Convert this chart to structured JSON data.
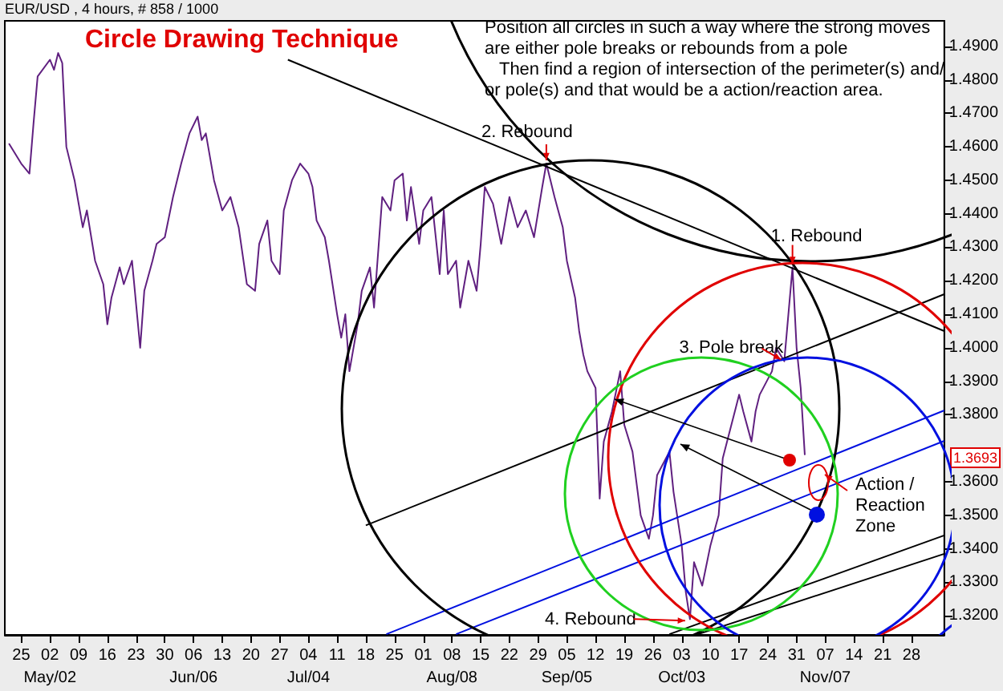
{
  "chart_data": {
    "type": "line",
    "title": "Circle Drawing Technique",
    "subtitle": "EUR/USD , 4 hours, # 858 / 1000",
    "marker": "none",
    "series": [
      {
        "color": "#602080",
        "x": [
          "--04-22",
          "--04-25",
          "--04-27",
          "--04-28",
          "--04-29",
          "--05-02",
          "--05-03",
          "--05-04",
          "--05-05",
          "--05-06",
          "--05-08",
          "--05-10",
          "--05-11",
          "--05-13",
          "--05-15",
          "--05-16",
          "--05-17",
          "--05-19",
          "--05-20",
          "--05-22",
          "--05-24",
          "--05-25",
          "--05-27",
          "--05-28",
          "--05-30",
          "--06-01",
          "--06-03",
          "--06-05",
          "--06-07",
          "--06-08",
          "--06-09",
          "--06-11",
          "--06-13",
          "--06-15",
          "--06-17",
          "--06-19",
          "--06-21",
          "--06-22",
          "--06-24",
          "--06-25",
          "--06-27",
          "--06-28",
          "--06-30",
          "--07-02",
          "--07-04",
          "--07-05",
          "--07-06",
          "--07-08",
          "--07-09",
          "--07-11",
          "--07-12",
          "--07-13",
          "--07-14",
          "--07-16",
          "--07-17",
          "--07-19",
          "--07-20",
          "--07-22",
          "--07-24",
          "--07-25",
          "--07-27",
          "--07-28",
          "--07-29",
          "--07-31",
          "--08-01",
          "--08-03",
          "--08-05",
          "--08-06",
          "--08-07",
          "--08-09",
          "--08-10",
          "--08-12",
          "--08-14",
          "--08-15",
          "--08-16",
          "--08-18",
          "--08-20",
          "--08-22",
          "--08-24",
          "--08-26",
          "--08-28",
          "--08-30",
          "--08-31",
          "--09-02",
          "--09-04",
          "--09-05",
          "--09-07",
          "--09-08",
          "--09-09",
          "--09-10",
          "--09-12",
          "--09-13",
          "--09-14",
          "--09-16",
          "--09-18",
          "--09-19",
          "--09-21",
          "--09-23",
          "--09-25",
          "--09-26",
          "--09-27",
          "--09-30",
          "--10-01",
          "--10-03",
          "--10-04",
          "--10-05",
          "--10-06",
          "--10-08",
          "--10-10",
          "--10-12",
          "--10-13",
          "--10-17",
          "--10-18",
          "--10-20",
          "--10-21",
          "--10-22",
          "--10-25",
          "--10-26",
          "--10-28",
          "--10-30",
          "--10-31",
          "--11-01",
          "--11-02"
        ],
        "values": [
          1.461,
          1.455,
          1.452,
          1.467,
          1.481,
          1.486,
          1.483,
          1.488,
          1.485,
          1.46,
          1.45,
          1.436,
          1.441,
          1.426,
          1.419,
          1.407,
          1.415,
          1.424,
          1.419,
          1.426,
          1.4,
          1.417,
          1.426,
          1.431,
          1.433,
          1.445,
          1.455,
          1.464,
          1.469,
          1.462,
          1.464,
          1.45,
          1.441,
          1.445,
          1.436,
          1.419,
          1.417,
          1.431,
          1.438,
          1.426,
          1.422,
          1.441,
          1.45,
          1.455,
          1.452,
          1.448,
          1.438,
          1.433,
          1.426,
          1.41,
          1.403,
          1.41,
          1.393,
          1.407,
          1.417,
          1.424,
          1.412,
          1.445,
          1.441,
          1.45,
          1.452,
          1.438,
          1.448,
          1.431,
          1.441,
          1.445,
          1.422,
          1.441,
          1.422,
          1.426,
          1.412,
          1.426,
          1.417,
          1.431,
          1.448,
          1.443,
          1.431,
          1.445,
          1.436,
          1.441,
          1.433,
          1.448,
          1.455,
          1.445,
          1.436,
          1.426,
          1.415,
          1.405,
          1.398,
          1.393,
          1.388,
          1.355,
          1.372,
          1.381,
          1.393,
          1.377,
          1.369,
          1.35,
          1.343,
          1.35,
          1.362,
          1.369,
          1.357,
          1.341,
          1.327,
          1.319,
          1.336,
          1.329,
          1.341,
          1.35,
          1.367,
          1.386,
          1.381,
          1.372,
          1.381,
          1.386,
          1.393,
          1.4,
          1.396,
          1.424,
          1.4,
          1.388,
          1.368
        ]
      },
      {
        "type": "line",
        "color": "#000000",
        "x": [
          "--06-29",
          "--12-06"
        ],
        "values": [
          1.486,
          1.405
        ]
      },
      {
        "type": "line",
        "color": "#000000",
        "x": [
          "--07-18",
          "--12-06"
        ],
        "values": [
          1.347,
          1.416
        ]
      },
      {
        "type": "line",
        "color": "#000000",
        "x": [
          "--09-30",
          "--12-06"
        ],
        "values": [
          1.3145,
          1.344
        ]
      },
      {
        "type": "line",
        "color": "#000000",
        "x": [
          "--10-07",
          "--12-06"
        ],
        "values": [
          1.3145,
          1.3385
        ]
      },
      {
        "type": "line",
        "color": "#0010e0",
        "x": [
          "--07-23",
          "--12-06"
        ],
        "values": [
          1.3145,
          1.3813
        ]
      },
      {
        "type": "line",
        "color": "#0010e0",
        "x": [
          "--08-09",
          "--12-06"
        ],
        "values": [
          1.3145,
          1.3722
        ]
      }
    ],
    "xlim": [
      "--04-21",
      "--12-06"
    ],
    "xticks": [
      {
        "value": "--04-25",
        "label": "25"
      },
      {
        "value": "--05-02",
        "label": "02"
      },
      {
        "value": "--05-09",
        "label": "09"
      },
      {
        "value": "--05-16",
        "label": "16"
      },
      {
        "value": "--05-23",
        "label": "23"
      },
      {
        "value": "--05-30",
        "label": "30"
      },
      {
        "value": "--06-06",
        "label": "06"
      },
      {
        "value": "--06-13",
        "label": "13"
      },
      {
        "value": "--06-20",
        "label": "20"
      },
      {
        "value": "--06-27",
        "label": "27"
      },
      {
        "value": "--07-04",
        "label": "04"
      },
      {
        "value": "--07-11",
        "label": "11"
      },
      {
        "value": "--07-18",
        "label": "18"
      },
      {
        "value": "--07-25",
        "label": "25"
      },
      {
        "value": "--08-01",
        "label": "01"
      },
      {
        "value": "--08-08",
        "label": "08"
      },
      {
        "value": "--08-15",
        "label": "15"
      },
      {
        "value": "--08-22",
        "label": "22"
      },
      {
        "value": "--08-29",
        "label": "29"
      },
      {
        "value": "--09-05",
        "label": "05"
      },
      {
        "value": "--09-12",
        "label": "12"
      },
      {
        "value": "--09-19",
        "label": "19"
      },
      {
        "value": "--09-26",
        "label": "26"
      },
      {
        "value": "--10-03",
        "label": "03"
      },
      {
        "value": "--10-10",
        "label": "10"
      },
      {
        "value": "--10-17",
        "label": "17"
      },
      {
        "value": "--10-24",
        "label": "24"
      },
      {
        "value": "--10-31",
        "label": "31"
      },
      {
        "value": "--11-07",
        "label": "07"
      },
      {
        "value": "--11-14",
        "label": "14"
      },
      {
        "value": "--11-21",
        "label": "21"
      },
      {
        "value": "--11-28",
        "label": "28"
      }
    ],
    "x2lim": [
      "--04-21",
      "--12-06"
    ],
    "x2ticks": [
      {
        "value": "--05-02",
        "label": "May/02"
      },
      {
        "value": "--06-06",
        "label": "Jun/06"
      },
      {
        "value": "--07-04",
        "label": "Jul/04"
      },
      {
        "value": "--08-08",
        "label": "Aug/08"
      },
      {
        "value": "--09-05",
        "label": "Sep/05"
      },
      {
        "value": "--10-03",
        "label": "Oct/03"
      },
      {
        "value": "--11-07",
        "label": "Nov/07"
      }
    ],
    "ylim": [
      1.3143,
      1.4976
    ],
    "yticks": [
      {
        "value": 1.32,
        "label": "1.3200"
      },
      {
        "value": 1.33,
        "label": "1.3300"
      },
      {
        "value": 1.34,
        "label": "1.3400"
      },
      {
        "value": 1.35,
        "label": "1.3500"
      },
      {
        "value": 1.36,
        "label": "1.3600"
      },
      {
        "value": 1.38,
        "label": "1.3800"
      },
      {
        "value": 1.39,
        "label": "1.3900"
      },
      {
        "value": 1.4,
        "label": "1.4000"
      },
      {
        "value": 1.41,
        "label": "1.4100"
      },
      {
        "value": 1.42,
        "label": "1.4200"
      },
      {
        "value": 1.43,
        "label": "1.4300"
      },
      {
        "value": 1.44,
        "label": "1.4400"
      },
      {
        "value": 1.45,
        "label": "1.4500"
      },
      {
        "value": 1.46,
        "label": "1.4600"
      },
      {
        "value": 1.47,
        "label": "1.4700"
      },
      {
        "value": 1.48,
        "label": "1.4800"
      },
      {
        "value": 1.49,
        "label": "1.4900"
      }
    ],
    "annotations": [
      "Position all circles in such a way where the strong moves are either pole breaks or rebounds from a pole\n   Then find a region of intersection of the perimeter(s) and/or pole(s) and that would be a action/reaction area.",
      {
        "text": "2. Rebound",
        "x": "--08-31",
        "y": 1.455
      },
      {
        "text": "1. Rebound",
        "x": "--10-30",
        "y": 1.424
      },
      {
        "text": "3. Pole break",
        "x": "--10-28",
        "y": 1.396
      },
      {
        "text": "4. Rebound",
        "x": "--10-05",
        "y": 1.319
      },
      "Action / Reaction Zone",
      "1.3693"
    ]
  }
}
